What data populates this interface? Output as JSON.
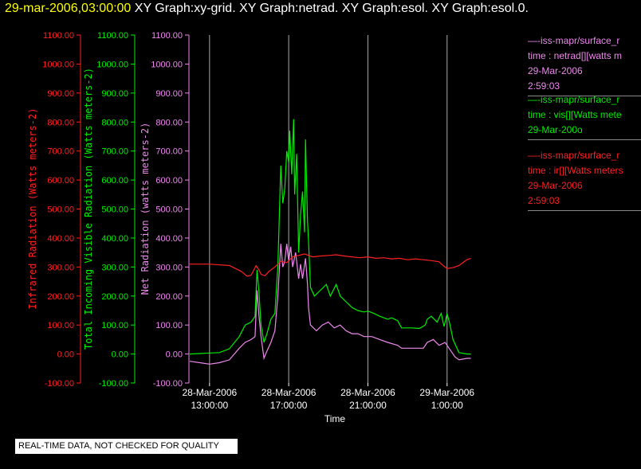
{
  "header": {
    "time": "29-mar-2006,03:00:00",
    "title": " XY Graph:xy-grid.  XY Graph:netrad.  XY Graph:esol.  XY Graph:esol.0."
  },
  "colors": {
    "background": "#000000",
    "ir": "#ff2020",
    "vis": "#00ee00",
    "net": "#ee88ee",
    "axis_text": "#ffffff",
    "grid": "#aaaaaa",
    "header_time": "#ffff00"
  },
  "notice": "REAL-TIME DATA, NOT CHECKED FOR QUALITY",
  "legend": [
    {
      "color": "#ee88ee",
      "lines": [
        "—-iss-mapr/surface_r",
        "time : netrad[][watts m",
        "29-Mar-2006",
        "2:59:03"
      ]
    },
    {
      "color": "#00ee00",
      "lines": [
        "—-iss-mapr/surface_r",
        "time : vis[][Watts mete",
        "29-Mar-200o"
      ]
    },
    {
      "color": "#ff2020",
      "lines": [
        "—-iss-mapr/surface_r",
        "time : ir[][Watts meters",
        "29-Mar-2006",
        "2:59:03"
      ]
    }
  ],
  "chart_data": {
    "type": "line",
    "xlabel": "Time",
    "x_ticks": [
      {
        "value": 13,
        "date": "28-Mar-2006",
        "time": "13:00:00"
      },
      {
        "value": 17,
        "date": "28-Mar-2006",
        "time": "17:00:00"
      },
      {
        "value": 21,
        "date": "28-Mar-2006",
        "time": "21:00:00"
      },
      {
        "value": 25,
        "date": "29-Mar-2006",
        "time": "1:00:00"
      }
    ],
    "xlim": [
      12,
      26.5
    ],
    "ylim": [
      -100,
      1100
    ],
    "y_ticks": [
      "1100.00",
      "1000.00",
      "900.00",
      "800.00",
      "700.00",
      "600.00",
      "500.00",
      "400.00",
      "300.00",
      "200.00",
      "100.00",
      "0.00",
      "-100.00"
    ],
    "axes": [
      {
        "label": "Infrared Radiation (Watts meters-2)",
        "color": "#ff2020"
      },
      {
        "label": "Total Incoming Visible Radiation (Watts meters-2)",
        "color": "#00ee00"
      },
      {
        "label": "Net Radiation (watts meters-2)",
        "color": "#ee88ee"
      }
    ],
    "series": [
      {
        "key": "vis",
        "color": "#00ee00",
        "points": [
          [
            12.0,
            0
          ],
          [
            13.5,
            5
          ],
          [
            14.0,
            18
          ],
          [
            14.5,
            60
          ],
          [
            14.8,
            100
          ],
          [
            15.1,
            110
          ],
          [
            15.3,
            130
          ],
          [
            15.4,
            290
          ],
          [
            15.5,
            210
          ],
          [
            15.6,
            100
          ],
          [
            15.75,
            40
          ],
          [
            15.9,
            70
          ],
          [
            16.1,
            120
          ],
          [
            16.3,
            140
          ],
          [
            16.45,
            300
          ],
          [
            16.6,
            650
          ],
          [
            16.7,
            520
          ],
          [
            16.8,
            570
          ],
          [
            16.9,
            700
          ],
          [
            17.0,
            660
          ],
          [
            17.05,
            770
          ],
          [
            17.15,
            620
          ],
          [
            17.25,
            810
          ],
          [
            17.3,
            550
          ],
          [
            17.4,
            690
          ],
          [
            17.5,
            350
          ],
          [
            17.6,
            480
          ],
          [
            17.7,
            560
          ],
          [
            17.8,
            420
          ],
          [
            17.85,
            740
          ],
          [
            17.95,
            460
          ],
          [
            18.0,
            390
          ],
          [
            18.1,
            230
          ],
          [
            18.3,
            200
          ],
          [
            18.6,
            220
          ],
          [
            18.9,
            240
          ],
          [
            19.1,
            200
          ],
          [
            19.4,
            240
          ],
          [
            19.6,
            200
          ],
          [
            19.9,
            180
          ],
          [
            20.2,
            160
          ],
          [
            20.5,
            150
          ],
          [
            20.8,
            145
          ],
          [
            21.0,
            148
          ],
          [
            21.3,
            140
          ],
          [
            21.6,
            130
          ],
          [
            22.0,
            120
          ],
          [
            22.2,
            125
          ],
          [
            22.5,
            115
          ],
          [
            22.7,
            90
          ],
          [
            23.2,
            90
          ],
          [
            23.6,
            88
          ],
          [
            23.9,
            100
          ],
          [
            24.0,
            120
          ],
          [
            24.2,
            130
          ],
          [
            24.5,
            110
          ],
          [
            24.7,
            140
          ],
          [
            24.85,
            95
          ],
          [
            25.0,
            140
          ],
          [
            25.15,
            100
          ],
          [
            25.3,
            50
          ],
          [
            25.6,
            5
          ],
          [
            26.0,
            0
          ],
          [
            26.2,
            0
          ]
        ]
      },
      {
        "key": "net",
        "color": "#ee88ee",
        "points": [
          [
            12.0,
            -25
          ],
          [
            13.0,
            -35
          ],
          [
            13.5,
            -30
          ],
          [
            14.0,
            -20
          ],
          [
            14.5,
            20
          ],
          [
            14.8,
            40
          ],
          [
            15.1,
            50
          ],
          [
            15.3,
            60
          ],
          [
            15.4,
            220
          ],
          [
            15.5,
            130
          ],
          [
            15.6,
            60
          ],
          [
            15.75,
            -15
          ],
          [
            15.9,
            10
          ],
          [
            16.1,
            40
          ],
          [
            16.3,
            80
          ],
          [
            16.45,
            200
          ],
          [
            16.6,
            380
          ],
          [
            16.7,
            300
          ],
          [
            16.8,
            320
          ],
          [
            16.9,
            380
          ],
          [
            17.0,
            320
          ],
          [
            17.1,
            370
          ],
          [
            17.2,
            300
          ],
          [
            17.35,
            350
          ],
          [
            17.5,
            260
          ],
          [
            17.6,
            310
          ],
          [
            17.7,
            260
          ],
          [
            17.85,
            330
          ],
          [
            17.95,
            240
          ],
          [
            18.0,
            160
          ],
          [
            18.1,
            100
          ],
          [
            18.4,
            80
          ],
          [
            18.7,
            100
          ],
          [
            19.0,
            110
          ],
          [
            19.3,
            90
          ],
          [
            19.6,
            100
          ],
          [
            19.9,
            80
          ],
          [
            20.2,
            70
          ],
          [
            20.5,
            70
          ],
          [
            20.8,
            60
          ],
          [
            21.2,
            60
          ],
          [
            21.6,
            50
          ],
          [
            22.0,
            40
          ],
          [
            22.5,
            30
          ],
          [
            22.7,
            20
          ],
          [
            23.2,
            20
          ],
          [
            23.8,
            20
          ],
          [
            24.0,
            40
          ],
          [
            24.3,
            50
          ],
          [
            24.6,
            30
          ],
          [
            24.9,
            40
          ],
          [
            25.1,
            20
          ],
          [
            25.4,
            -10
          ],
          [
            25.6,
            -20
          ],
          [
            26.0,
            -15
          ],
          [
            26.2,
            -15
          ]
        ]
      },
      {
        "key": "ir",
        "color": "#ff2020",
        "points": [
          [
            12.0,
            310
          ],
          [
            13.0,
            310
          ],
          [
            14.0,
            305
          ],
          [
            14.6,
            285
          ],
          [
            14.9,
            268
          ],
          [
            15.1,
            272
          ],
          [
            15.35,
            305
          ],
          [
            15.5,
            290
          ],
          [
            15.6,
            275
          ],
          [
            15.8,
            270
          ],
          [
            16.0,
            285
          ],
          [
            16.3,
            300
          ],
          [
            16.6,
            320
          ],
          [
            16.9,
            315
          ],
          [
            17.2,
            335
          ],
          [
            17.5,
            340
          ],
          [
            17.8,
            345
          ],
          [
            18.2,
            335
          ],
          [
            18.6,
            338
          ],
          [
            19.0,
            340
          ],
          [
            19.4,
            342
          ],
          [
            19.8,
            338
          ],
          [
            20.2,
            335
          ],
          [
            20.6,
            332
          ],
          [
            21.0,
            335
          ],
          [
            21.4,
            330
          ],
          [
            21.8,
            332
          ],
          [
            22.2,
            328
          ],
          [
            22.6,
            330
          ],
          [
            23.0,
            325
          ],
          [
            23.4,
            328
          ],
          [
            23.8,
            325
          ],
          [
            24.2,
            322
          ],
          [
            24.6,
            318
          ],
          [
            24.8,
            305
          ],
          [
            25.0,
            295
          ],
          [
            25.3,
            298
          ],
          [
            25.6,
            305
          ],
          [
            25.8,
            315
          ],
          [
            26.0,
            325
          ],
          [
            26.2,
            330
          ]
        ]
      }
    ]
  }
}
